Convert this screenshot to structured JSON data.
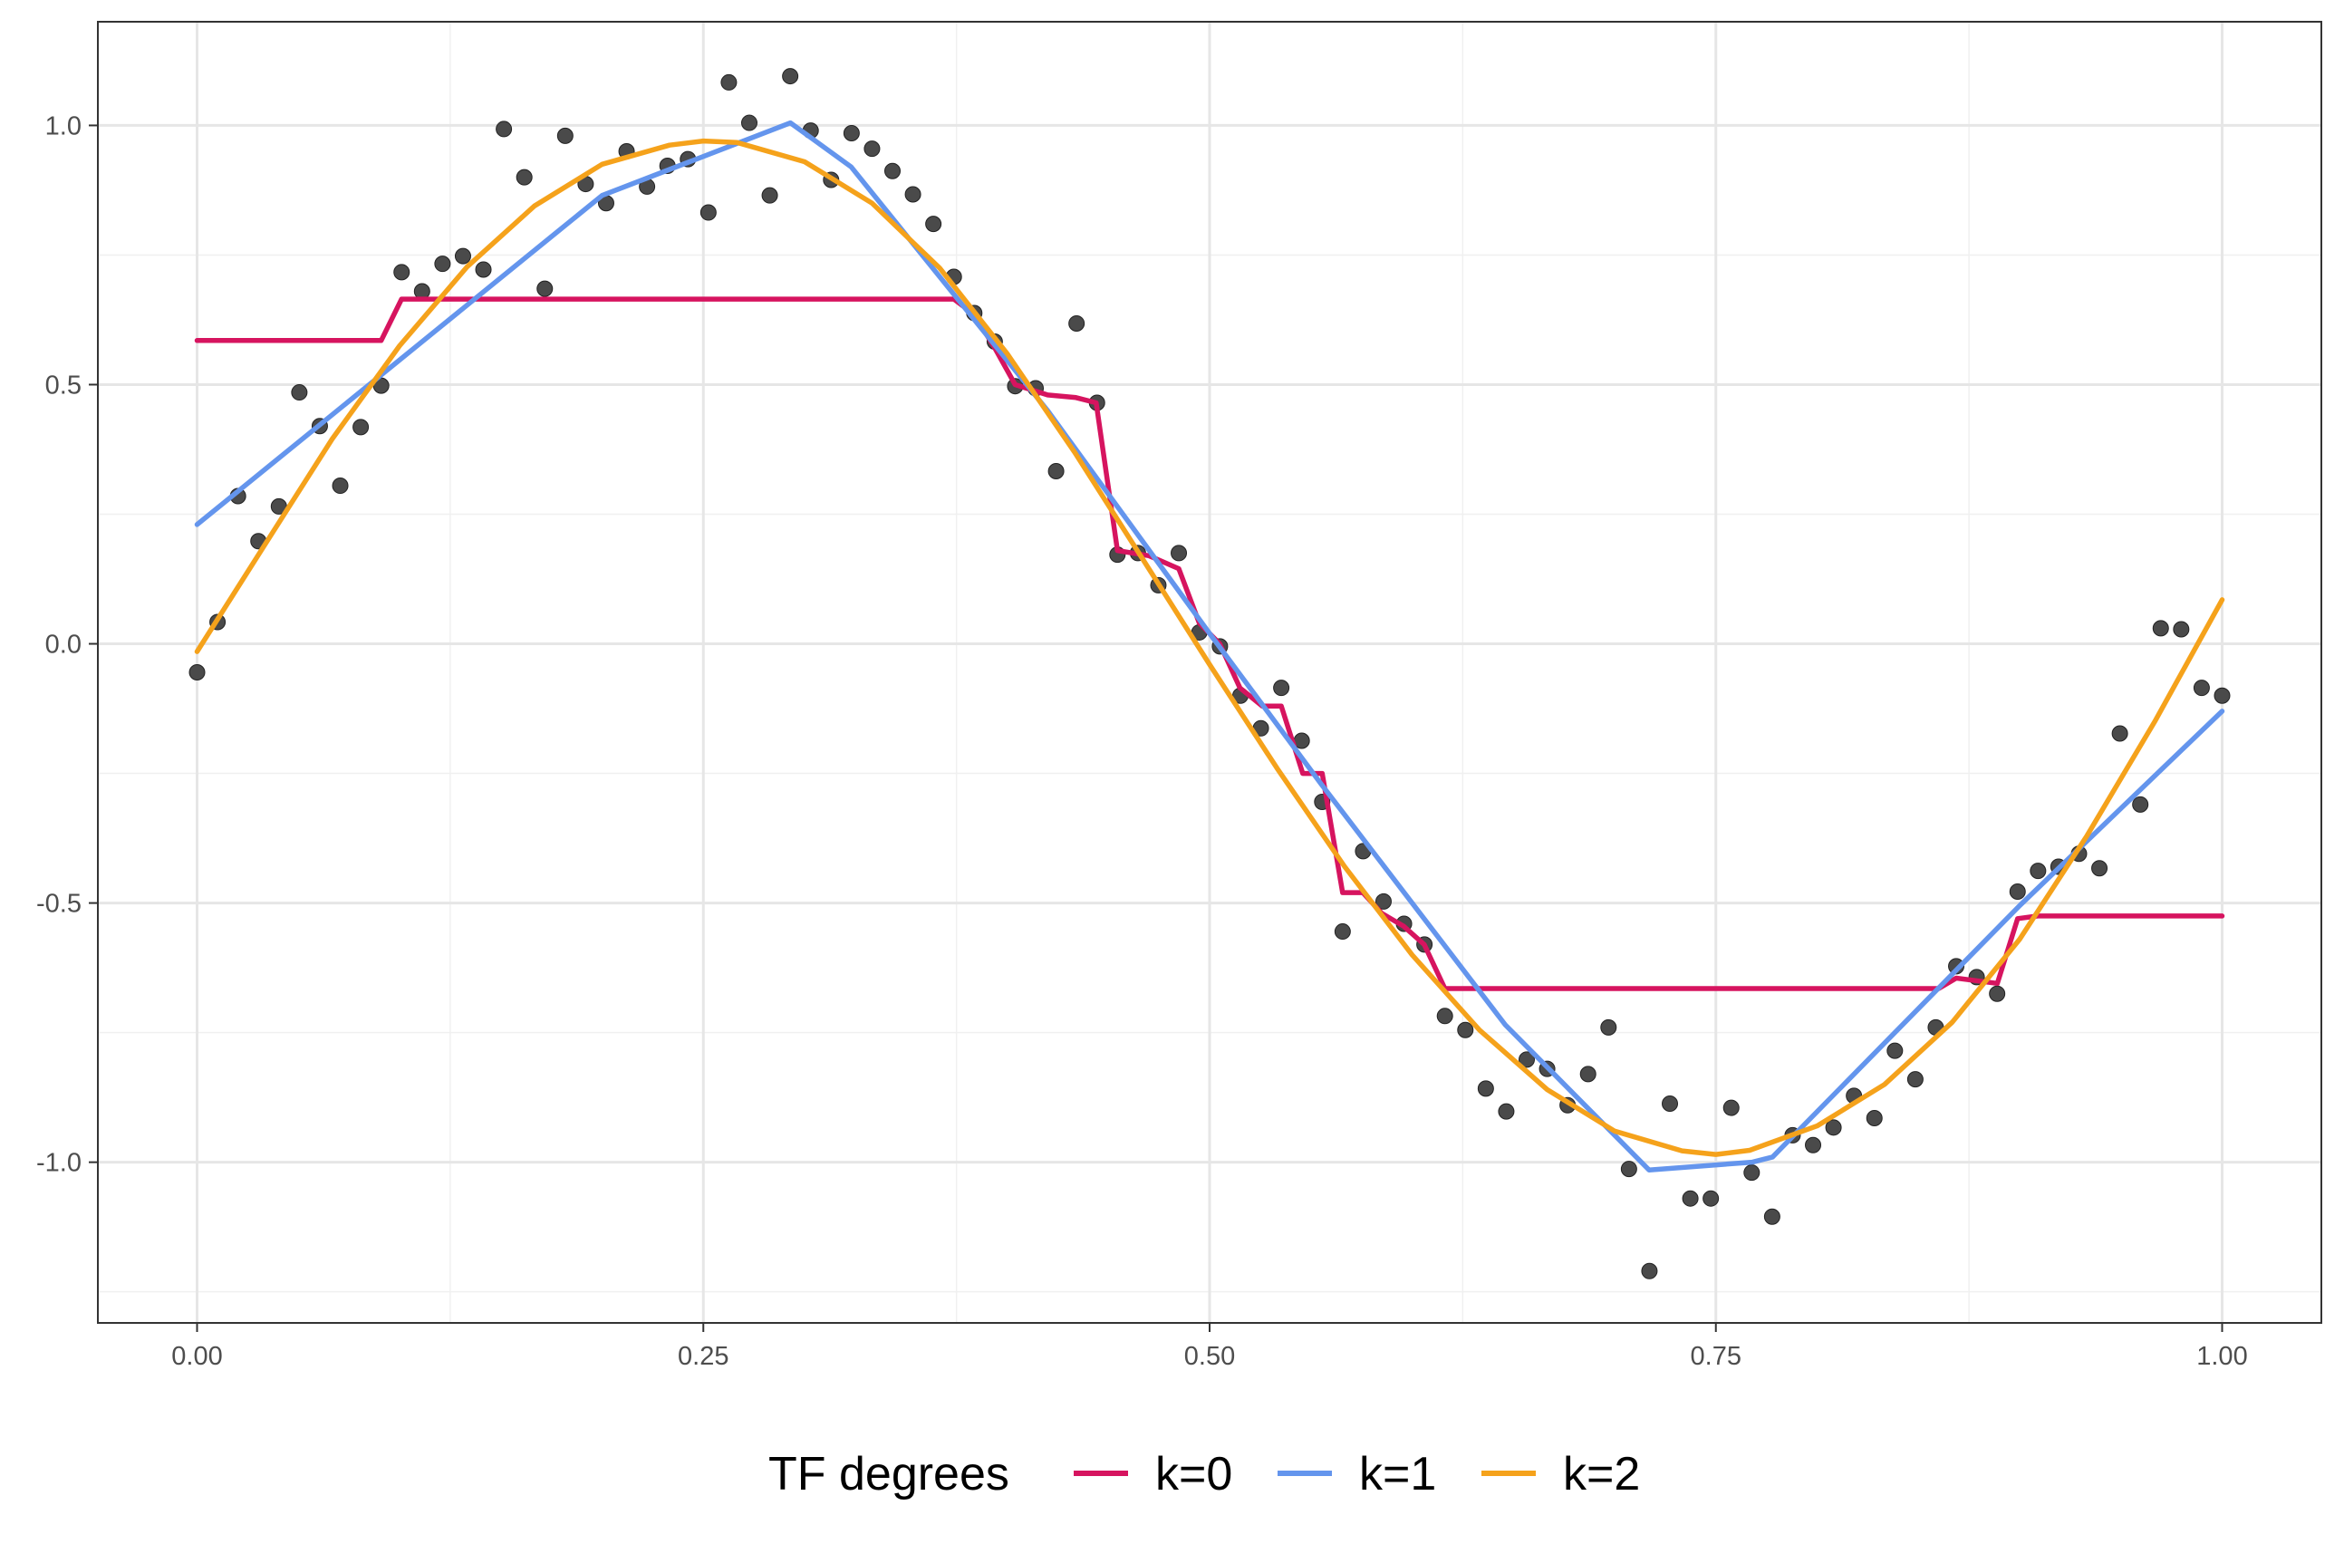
{
  "chart_data": {
    "type": "scatter",
    "title": "",
    "xlabel": "",
    "ylabel": "",
    "xlim": [
      -0.049,
      1.049
    ],
    "ylim": [
      -1.31,
      1.2
    ],
    "grid": true,
    "x_ticks": [
      {
        "value": 0.0,
        "label": "0.00"
      },
      {
        "value": 0.25,
        "label": "0.25"
      },
      {
        "value": 0.5,
        "label": "0.50"
      },
      {
        "value": 0.75,
        "label": "0.75"
      },
      {
        "value": 1.0,
        "label": "1.00"
      }
    ],
    "y_ticks": [
      {
        "value": 1.0,
        "label": "1.0"
      },
      {
        "value": 0.5,
        "label": "0.5"
      },
      {
        "value": 0.0,
        "label": "0.0"
      },
      {
        "value": -0.5,
        "label": "-0.5"
      },
      {
        "value": -1.0,
        "label": "-1.0"
      }
    ],
    "legend": {
      "title": "TF degrees",
      "position": "bottom",
      "entries": [
        {
          "label": "k=0",
          "color": "#d6145f"
        },
        {
          "label": "k=1",
          "color": "#6495ed"
        },
        {
          "label": "k=2",
          "color": "#f5a21b"
        }
      ]
    },
    "points": {
      "color": "#4a4a4a",
      "x": [
        0.0,
        0.0101,
        0.0202,
        0.0303,
        0.0404,
        0.0505,
        0.0606,
        0.0707,
        0.0808,
        0.0909,
        0.101,
        0.1111,
        0.1212,
        0.1313,
        0.1414,
        0.1515,
        0.1616,
        0.1717,
        0.1818,
        0.1919,
        0.202,
        0.2121,
        0.2222,
        0.2323,
        0.2424,
        0.2525,
        0.2626,
        0.2727,
        0.2828,
        0.2929,
        0.303,
        0.3131,
        0.3232,
        0.3333,
        0.3434,
        0.3535,
        0.3636,
        0.3737,
        0.3838,
        0.3939,
        0.404,
        0.4141,
        0.4242,
        0.4343,
        0.4444,
        0.4545,
        0.4646,
        0.4747,
        0.4848,
        0.4949,
        0.5051,
        0.5152,
        0.5253,
        0.5354,
        0.5455,
        0.5556,
        0.5657,
        0.5758,
        0.5859,
        0.596,
        0.6061,
        0.6162,
        0.6263,
        0.6364,
        0.6465,
        0.6566,
        0.6667,
        0.6768,
        0.6869,
        0.697,
        0.7071,
        0.7172,
        0.7273,
        0.7374,
        0.7475,
        0.7576,
        0.7677,
        0.7778,
        0.7879,
        0.798,
        0.8081,
        0.8182,
        0.8283,
        0.8384,
        0.8485,
        0.8586,
        0.8687,
        0.8788,
        0.8889,
        0.899,
        0.9091,
        0.9192,
        0.9293,
        0.9394,
        0.9495,
        0.9596,
        0.9697,
        0.9798,
        0.9899,
        1.0
      ],
      "y": [
        -0.055,
        0.042,
        0.285,
        0.198,
        0.265,
        0.485,
        0.42,
        0.305,
        0.418,
        0.498,
        0.717,
        0.68,
        0.733,
        0.748,
        0.722,
        0.993,
        0.9,
        0.685,
        0.98,
        0.887,
        0.85,
        0.95,
        0.882,
        0.922,
        0.935,
        0.832,
        1.083,
        1.005,
        0.865,
        1.095,
        0.99,
        0.895,
        0.985,
        0.955,
        0.912,
        0.867,
        0.81,
        0.708,
        0.638,
        0.583,
        0.497,
        0.493,
        0.333,
        0.618,
        0.465,
        0.172,
        0.175,
        0.113,
        0.175,
        0.022,
        -0.005,
        -0.1,
        -0.163,
        -0.085,
        -0.187,
        -0.305,
        -0.555,
        -0.4,
        -0.497,
        -0.54,
        -0.58,
        -0.718,
        -0.745,
        -0.858,
        -0.902,
        -0.802,
        -0.82,
        -0.89,
        -0.83,
        -0.74,
        -1.013,
        -1.21,
        -0.887,
        -1.07,
        -1.07,
        -0.895,
        -1.02,
        -1.105,
        -0.948,
        -0.967,
        -0.933,
        -0.872,
        -0.915,
        -0.785,
        -0.84,
        -0.74,
        -0.622,
        -0.643,
        -0.675,
        -0.478,
        -0.438,
        -0.43,
        -0.405,
        -0.433,
        -0.173,
        -0.31,
        0.03,
        0.028,
        -0.085,
        -0.1
      ]
    },
    "series": [
      {
        "label": "k=0",
        "color": "#d6145f",
        "x": [
          0.0,
          0.0909,
          0.101,
          0.3737,
          0.3838,
          0.394,
          0.404,
          0.42,
          0.434,
          0.444,
          0.4545,
          0.47,
          0.4848,
          0.4949,
          0.505,
          0.515,
          0.526,
          0.5354,
          0.546,
          0.5556,
          0.5657,
          0.5757,
          0.585,
          0.5959,
          0.606,
          0.6162,
          0.86,
          0.8687,
          0.889,
          0.899,
          0.909,
          1.0
        ],
        "y": [
          0.585,
          0.585,
          0.665,
          0.665,
          0.635,
          0.57,
          0.5,
          0.48,
          0.475,
          0.465,
          0.18,
          0.17,
          0.145,
          0.04,
          0.0,
          -0.085,
          -0.12,
          -0.12,
          -0.25,
          -0.25,
          -0.48,
          -0.48,
          -0.52,
          -0.545,
          -0.58,
          -0.665,
          -0.665,
          -0.645,
          -0.655,
          -0.53,
          -0.525,
          -0.525
        ]
      },
      {
        "label": "k=1",
        "color": "#6495ed",
        "x": [
          0.0,
          0.2,
          0.293,
          0.323,
          0.42,
          0.5,
          0.555,
          0.646,
          0.717,
          0.768,
          0.778,
          0.9,
          1.0
        ],
        "y": [
          0.23,
          0.865,
          1.005,
          0.92,
          0.45,
          0.02,
          -0.27,
          -0.735,
          -1.015,
          -1.0,
          -0.99,
          -0.505,
          -0.13
        ]
      },
      {
        "label": "k=2",
        "color": "#f5a21b",
        "x": [
          0.0,
          0.0333,
          0.0667,
          0.1,
          0.1333,
          0.1667,
          0.2,
          0.2333,
          0.25,
          0.2667,
          0.3,
          0.3333,
          0.3667,
          0.4,
          0.4333,
          0.4667,
          0.5,
          0.5333,
          0.5667,
          0.6,
          0.6333,
          0.6667,
          0.7,
          0.7333,
          0.75,
          0.7667,
          0.8,
          0.8333,
          0.8667,
          0.9,
          0.9333,
          0.9667,
          1.0
        ],
        "y": [
          -0.015,
          0.19,
          0.395,
          0.575,
          0.727,
          0.845,
          0.925,
          0.962,
          0.97,
          0.967,
          0.93,
          0.85,
          0.725,
          0.56,
          0.37,
          0.165,
          -0.04,
          -0.24,
          -0.43,
          -0.6,
          -0.745,
          -0.86,
          -0.94,
          -0.978,
          -0.985,
          -0.977,
          -0.93,
          -0.85,
          -0.73,
          -0.57,
          -0.37,
          -0.15,
          0.085
        ]
      }
    ]
  }
}
